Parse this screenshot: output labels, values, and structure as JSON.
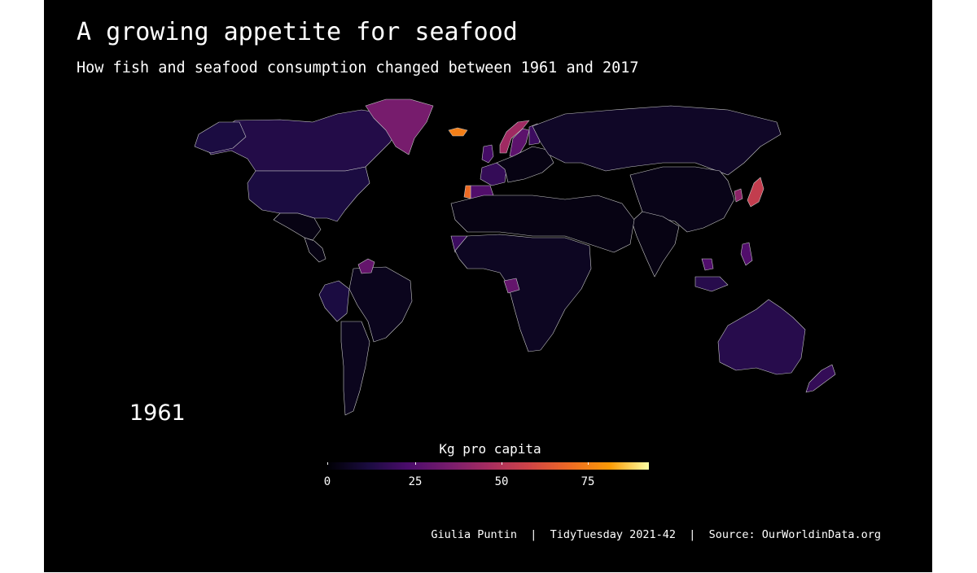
{
  "title": "A growing appetite for seafood",
  "subtitle": "How fish and seafood consumption changed between 1961 and 2017",
  "year": "1961",
  "legend": {
    "title": "Kg pro capita",
    "ticks": [
      "0",
      "25",
      "50",
      "75"
    ],
    "min": 0,
    "max": 93,
    "palette": "inferno"
  },
  "caption": "Giulia Puntin  |  TidyTuesday 2021-42  |  Source: OurWorldinData.org",
  "colors": {
    "background": "#000000",
    "border": "#c8c8c8",
    "text": "#ffffff"
  },
  "chart_data": {
    "type": "choropleth",
    "variable": "fish and seafood consumption",
    "unit": "kg per capita",
    "year": 1961,
    "regions": [
      {
        "name": "Canada",
        "value": 14
      },
      {
        "name": "United States",
        "value": 12
      },
      {
        "name": "Greenland",
        "value": 35
      },
      {
        "name": "Iceland",
        "value": 75
      },
      {
        "name": "Norway",
        "value": 45
      },
      {
        "name": "Sweden",
        "value": 28
      },
      {
        "name": "Finland",
        "value": 20
      },
      {
        "name": "United Kingdom",
        "value": 22
      },
      {
        "name": "France",
        "value": 18
      },
      {
        "name": "Spain",
        "value": 25
      },
      {
        "name": "Portugal",
        "value": 70
      },
      {
        "name": "Russia",
        "value": 7
      },
      {
        "name": "China",
        "value": 4
      },
      {
        "name": "Japan",
        "value": 55
      },
      {
        "name": "South Korea",
        "value": 40
      },
      {
        "name": "Philippines",
        "value": 25
      },
      {
        "name": "Indonesia",
        "value": 15
      },
      {
        "name": "Malaysia",
        "value": 25
      },
      {
        "name": "Australia",
        "value": 15
      },
      {
        "name": "New Zealand",
        "value": 18
      },
      {
        "name": "Brazil",
        "value": 5
      },
      {
        "name": "Peru",
        "value": 12
      },
      {
        "name": "Guyana",
        "value": 30
      },
      {
        "name": "Argentina",
        "value": 5
      },
      {
        "name": "Gabon",
        "value": 30
      },
      {
        "name": "Senegal",
        "value": 20
      },
      {
        "name": "Sub-Saharan Africa (other)",
        "value": 6
      },
      {
        "name": "North Africa & Middle East",
        "value": 3
      },
      {
        "name": "India",
        "value": 3
      }
    ]
  }
}
